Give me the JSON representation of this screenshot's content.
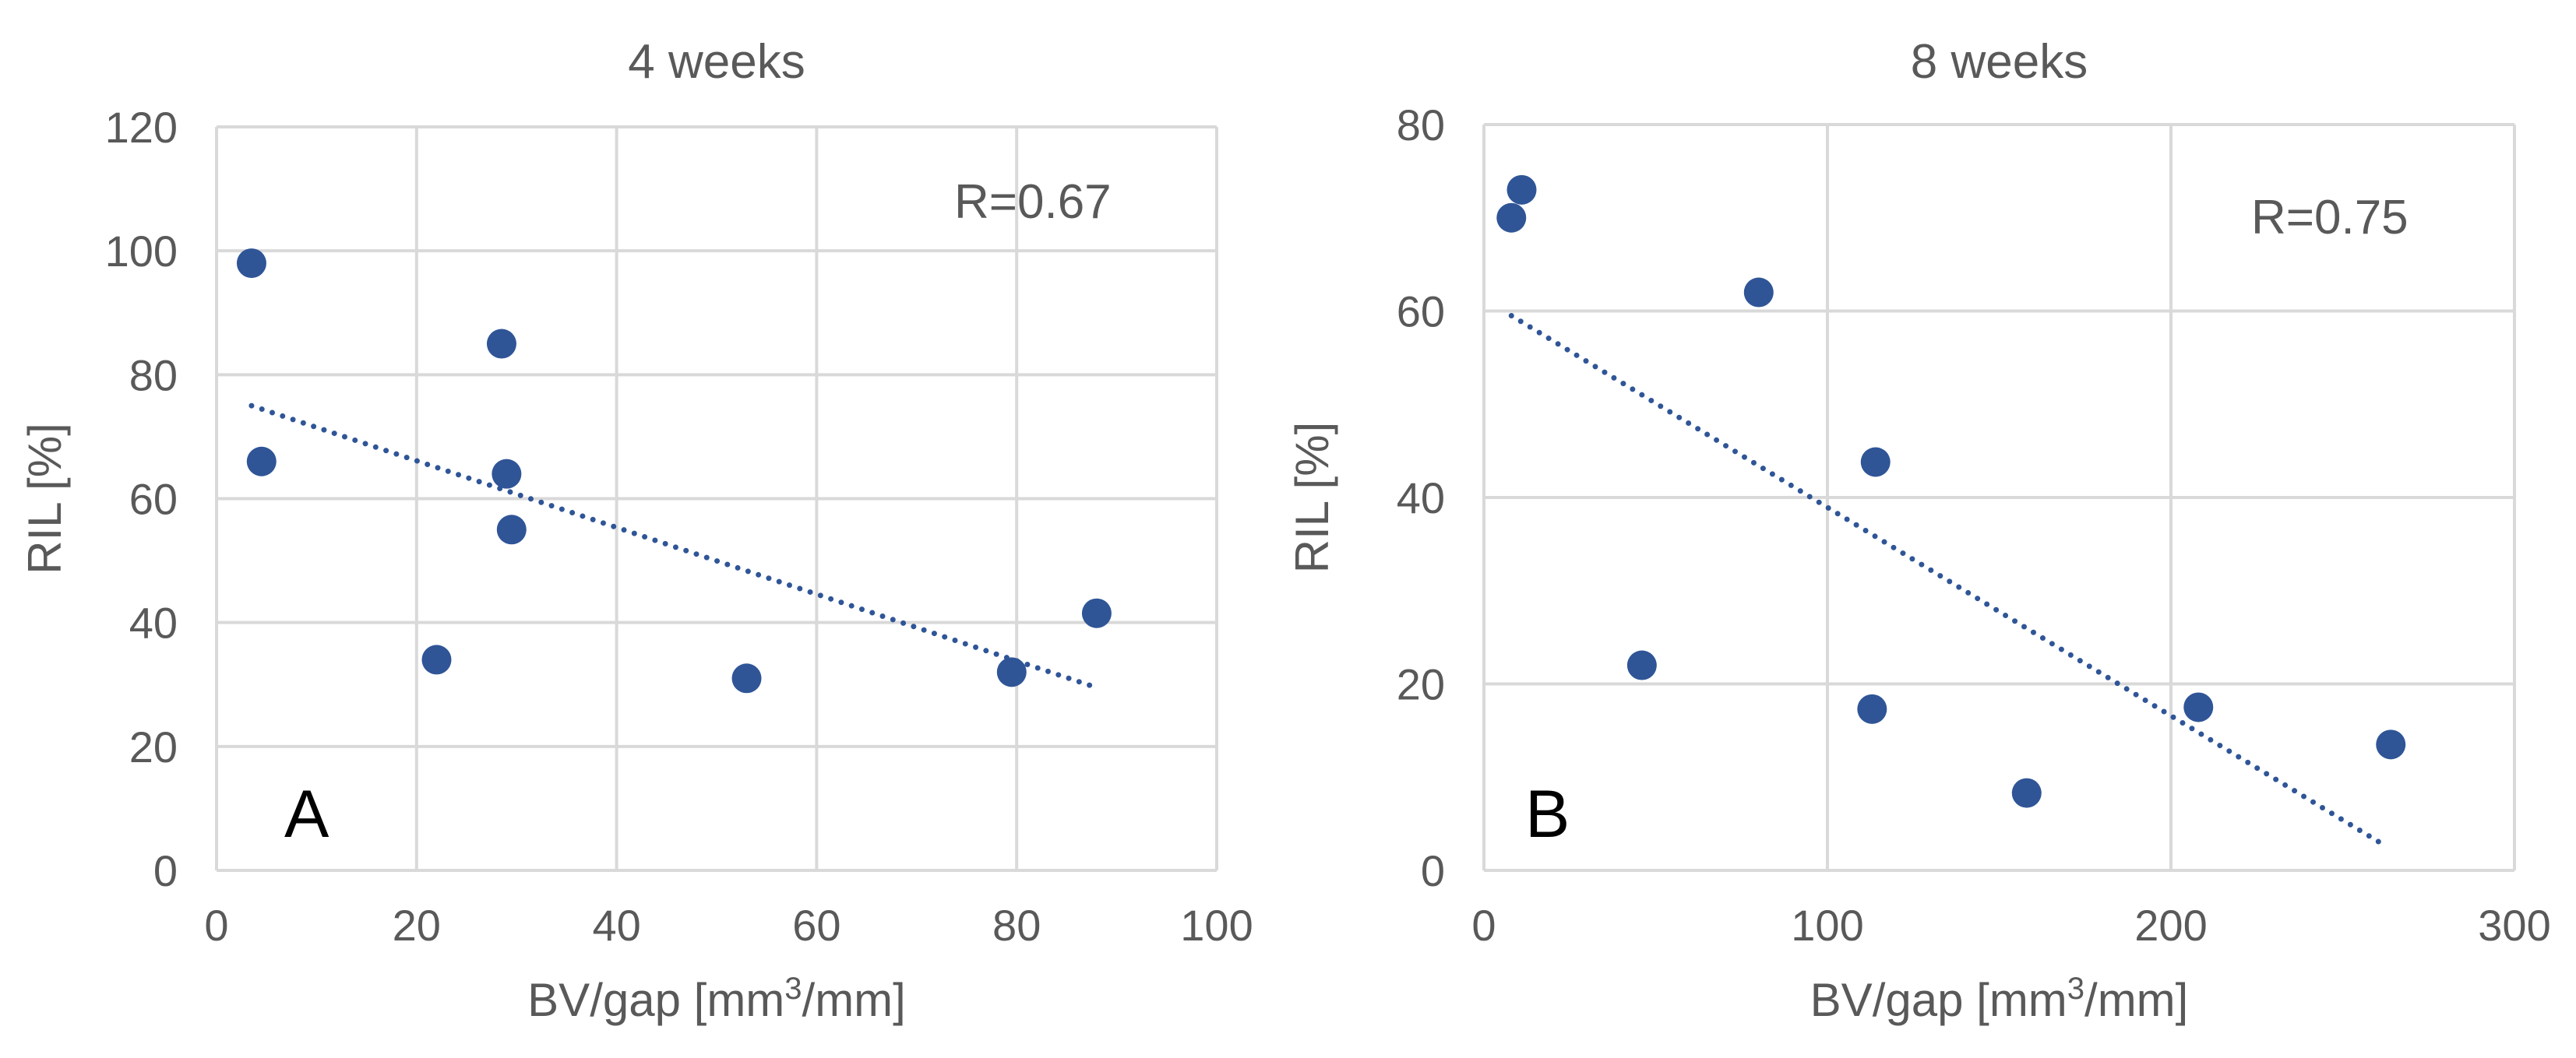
{
  "chart_data": [
    {
      "type": "scatter",
      "title": "4 weeks",
      "xlabel": "BV/gap [mm",
      "xlabel_sup": "3",
      "xlabel_tail": "/mm]",
      "ylabel": "RIL [%]",
      "xlim": [
        0,
        100
      ],
      "ylim": [
        0,
        120
      ],
      "xticks": [
        0,
        20,
        40,
        60,
        80,
        100
      ],
      "yticks": [
        0,
        20,
        40,
        60,
        80,
        100,
        120
      ],
      "xtick_labels": [
        "0",
        "20",
        "40",
        "60",
        "80",
        "100"
      ],
      "ytick_labels": [
        "0",
        "20",
        "40",
        "60",
        "80",
        "100",
        "120"
      ],
      "grid": true,
      "annotation": "R=0.67",
      "panel_label": "A",
      "series": [
        {
          "name": "data",
          "x": [
            3.5,
            4.5,
            22,
            28.5,
            29,
            29.5,
            53,
            79.5,
            88
          ],
          "y": [
            98,
            66,
            34,
            85,
            64,
            55,
            31,
            32,
            41.5
          ],
          "color": "#2F5597"
        }
      ],
      "trendline": {
        "x": [
          3.5,
          88
        ],
        "y": [
          75,
          29.5
        ],
        "style": "dotted",
        "color": "#2F5597"
      }
    },
    {
      "type": "scatter",
      "title": "8 weeks",
      "xlabel": "BV/gap [mm",
      "xlabel_sup": "3",
      "xlabel_tail": "/mm]",
      "ylabel": "RIL [%]",
      "xlim": [
        0,
        300
      ],
      "ylim": [
        0,
        80
      ],
      "xticks": [
        0,
        100,
        200,
        300
      ],
      "yticks": [
        0,
        20,
        40,
        60,
        80
      ],
      "xtick_labels": [
        "0",
        "100",
        "200",
        "300"
      ],
      "ytick_labels": [
        "0",
        "20",
        "40",
        "60",
        "80"
      ],
      "grid": true,
      "annotation": "R=0.75",
      "panel_label": "B",
      "series": [
        {
          "name": "data",
          "x": [
            8,
            11,
            46,
            80,
            113,
            114,
            158,
            208,
            264
          ],
          "y": [
            70,
            73,
            22,
            62,
            17.3,
            43.8,
            8.3,
            17.5,
            13.5
          ],
          "color": "#2F5597"
        }
      ],
      "trendline": {
        "x": [
          8,
          263
        ],
        "y": [
          59.5,
          2.5
        ],
        "style": "dotted",
        "color": "#2F5597"
      }
    }
  ]
}
